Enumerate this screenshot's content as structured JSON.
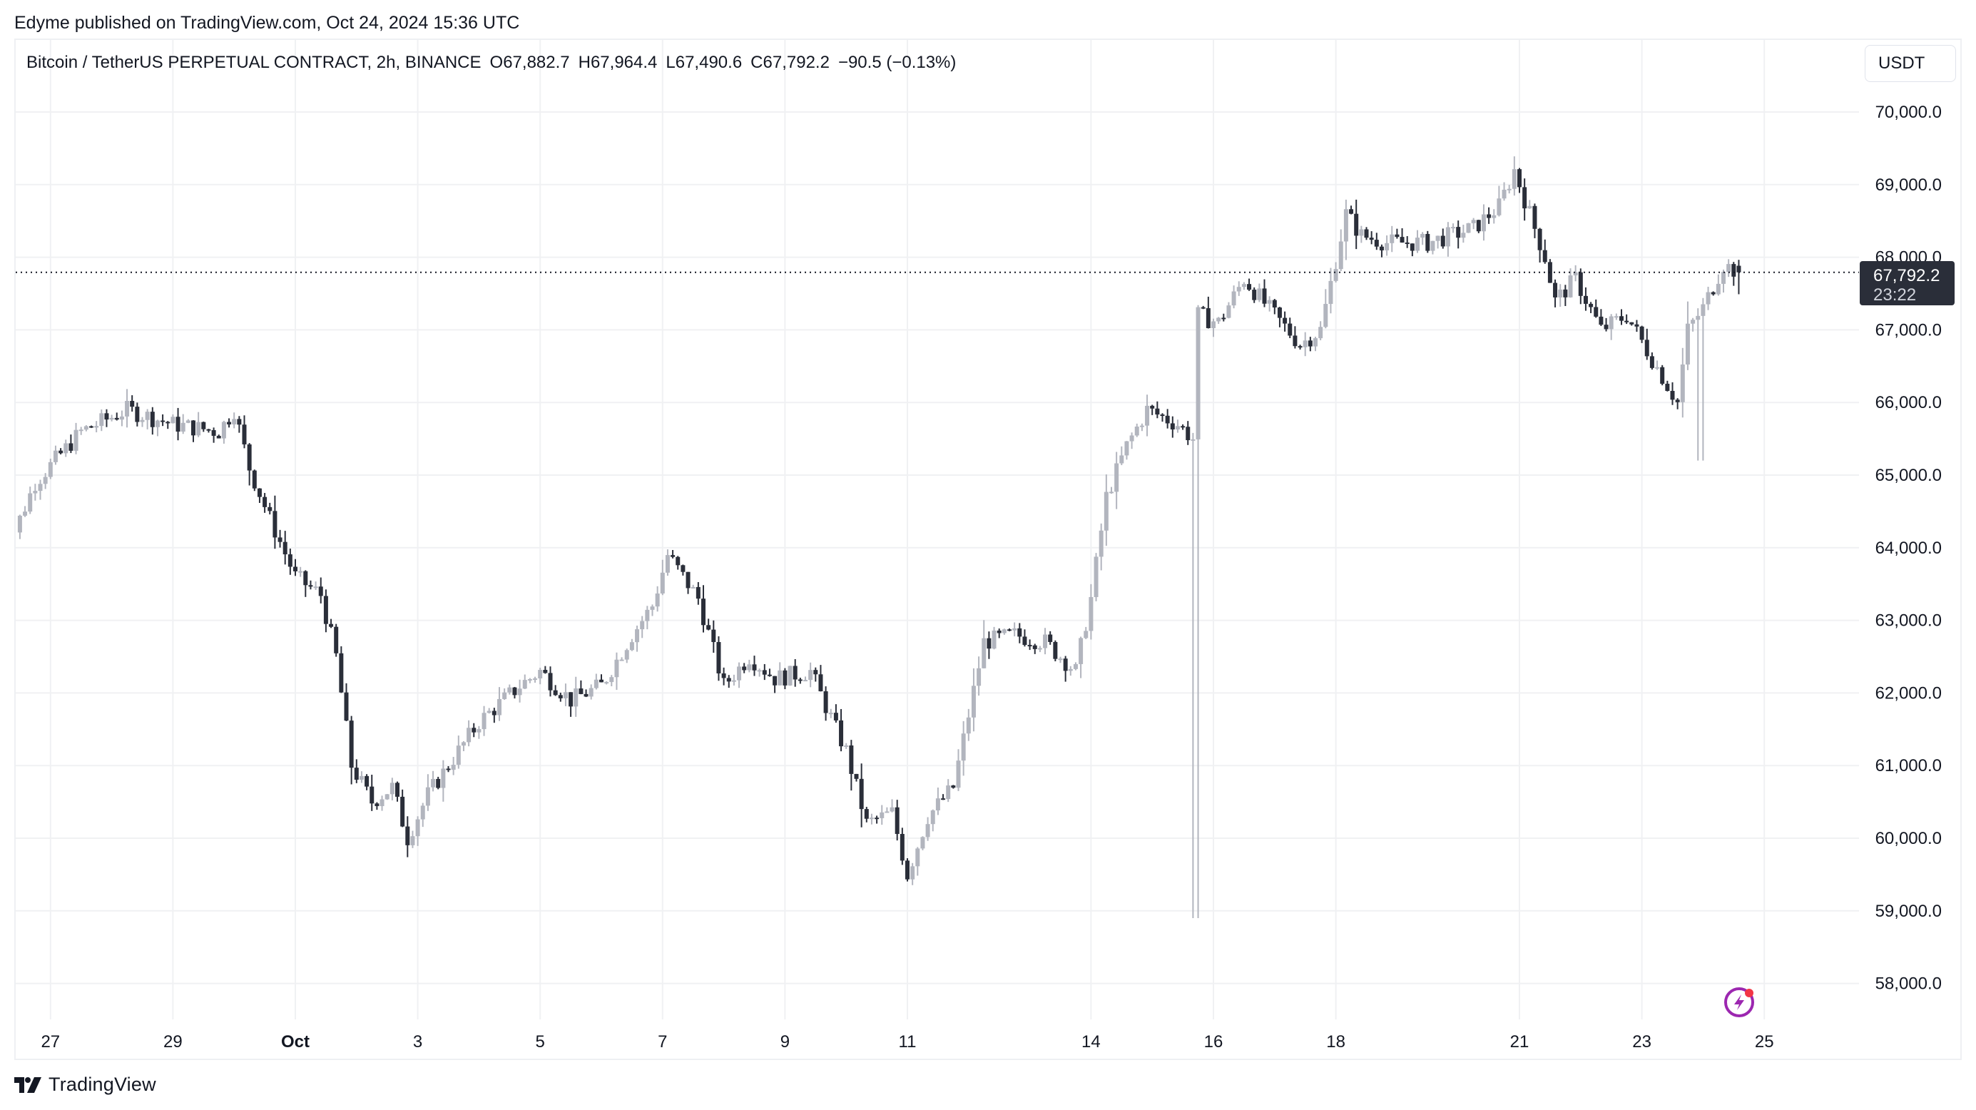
{
  "header": {
    "published": "Edyme published on TradingView.com, Oct 24, 2024 15:36 UTC"
  },
  "legend": {
    "symbol": "Bitcoin / TetherUS PERPETUAL CONTRACT, 2h, BINANCE",
    "open": "O67,882.7",
    "high": "H67,964.4",
    "low": "L67,490.6",
    "close": "C67,792.2",
    "change": "−90.5 (−0.13%)"
  },
  "price_axis": {
    "currency": "USDT",
    "ticks": [
      "70,000.0",
      "69,000.0",
      "68,000.0",
      "67,000.0",
      "66,000.0",
      "65,000.0",
      "64,000.0",
      "63,000.0",
      "62,000.0",
      "61,000.0",
      "60,000.0",
      "59,000.0",
      "58,000.0"
    ],
    "current_price_label": "67,792.2",
    "countdown": "23:22"
  },
  "time_axis": {
    "ticks": [
      {
        "label": "27",
        "bold": false
      },
      {
        "label": "29",
        "bold": false
      },
      {
        "label": "Oct",
        "bold": true
      },
      {
        "label": "3",
        "bold": false
      },
      {
        "label": "5",
        "bold": false
      },
      {
        "label": "7",
        "bold": false
      },
      {
        "label": "9",
        "bold": false
      },
      {
        "label": "11",
        "bold": false
      },
      {
        "label": "14",
        "bold": false
      },
      {
        "label": "16",
        "bold": false
      },
      {
        "label": "18",
        "bold": false
      },
      {
        "label": "21",
        "bold": false
      },
      {
        "label": "23",
        "bold": false
      },
      {
        "label": "25",
        "bold": false
      }
    ]
  },
  "footer": {
    "brand": "TradingView"
  },
  "colors": {
    "up": "#b2b5be",
    "down": "#2a2e39",
    "grid": "#f0f1f3",
    "price_label_bg": "#2a2e39",
    "lightning": "#9c27b0",
    "notify_dot": "#f23645"
  },
  "chart_data": {
    "type": "candlestick",
    "title": "Bitcoin / TetherUS PERPETUAL CONTRACT, 2h, BINANCE",
    "xlabel": "",
    "ylabel": "USDT",
    "ylim": [
      57400,
      70800
    ],
    "interval": "2h",
    "grid": true,
    "last_bar": {
      "open": 67882.7,
      "high": 67964.4,
      "low": 67490.6,
      "close": 67792.2
    },
    "x": [
      "Sep 26 06:00",
      "Sep 26 18:00",
      "Sep 27 12:00",
      "Sep 28 06:00",
      "Sep 29 00:00",
      "Sep 29 18:00",
      "Sep 30 00:00",
      "Sep 30 06:00",
      "Sep 30 14:00",
      "Oct 1 00:00",
      "Oct 1 10:00",
      "Oct 1 16:00",
      "Oct 1 22:00",
      "Oct 2 06:00",
      "Oct 2 14:00",
      "Oct 2 20:00",
      "Oct 3 04:00",
      "Oct 3 14:00",
      "Oct 4 00:00",
      "Oct 4 16:00",
      "Oct 5 00:00",
      "Oct 5 12:00",
      "Oct 6 00:00",
      "Oct 6 12:00",
      "Oct 6 20:00",
      "Oct 7 02:00",
      "Oct 7 14:00",
      "Oct 8 00:00",
      "Oct 8 10:00",
      "Oct 8 20:00",
      "Oct 9 10:00",
      "Oct 9 20:00",
      "Oct 10 00:00",
      "Oct 10 08:00",
      "Oct 10 18:00",
      "Oct 11 00:00",
      "Oct 11 08:00",
      "Oct 11 18:00",
      "Oct 12 06:00",
      "Oct 12 18:00",
      "Oct 13 06:00",
      "Oct 13 18:00",
      "Oct 14 00:00",
      "Oct 14 06:00",
      "Oct 14 14:00",
      "Oct 14 22:00",
      "Oct 15 10:00",
      "Oct 15 16:00",
      "Oct 15 18:00",
      "Oct 16 02:00",
      "Oct 16 12:00",
      "Oct 17 00:00",
      "Oct 17 10:00",
      "Oct 17 18:00",
      "Oct 18 04:00",
      "Oct 18 10:00",
      "Oct 18 20:00",
      "Oct 19 12:00",
      "Oct 20 06:00",
      "Oct 20 16:00",
      "Oct 20 22:00",
      "Oct 21 02:00",
      "Oct 21 10:00",
      "Oct 21 14:00",
      "Oct 21 22:00",
      "Oct 22 08:00",
      "Oct 22 18:00",
      "Oct 23 04:00",
      "Oct 23 14:00",
      "Oct 23 18:00",
      "Oct 24 00:00",
      "Oct 24 08:00",
      "Oct 24 14:00"
    ],
    "close": [
      63900,
      64900,
      65600,
      65900,
      65700,
      65600,
      65900,
      65100,
      64400,
      63600,
      63350,
      62500,
      61000,
      60500,
      60700,
      60000,
      60600,
      61100,
      61600,
      62100,
      62300,
      61900,
      62100,
      62800,
      63200,
      63900,
      63300,
      62100,
      62500,
      62200,
      62300,
      61500,
      61200,
      60200,
      60350,
      59500,
      60300,
      60700,
      62700,
      62800,
      62700,
      62300,
      63300,
      64700,
      65400,
      65900,
      65700,
      65500,
      67200,
      67100,
      67700,
      67200,
      66800,
      67000,
      68600,
      68300,
      68200,
      68200,
      68400,
      68700,
      69200,
      68800,
      68000,
      67400,
      67700,
      67000,
      67200,
      66600,
      66000,
      67000,
      67300,
      67900,
      67792.2
    ]
  }
}
